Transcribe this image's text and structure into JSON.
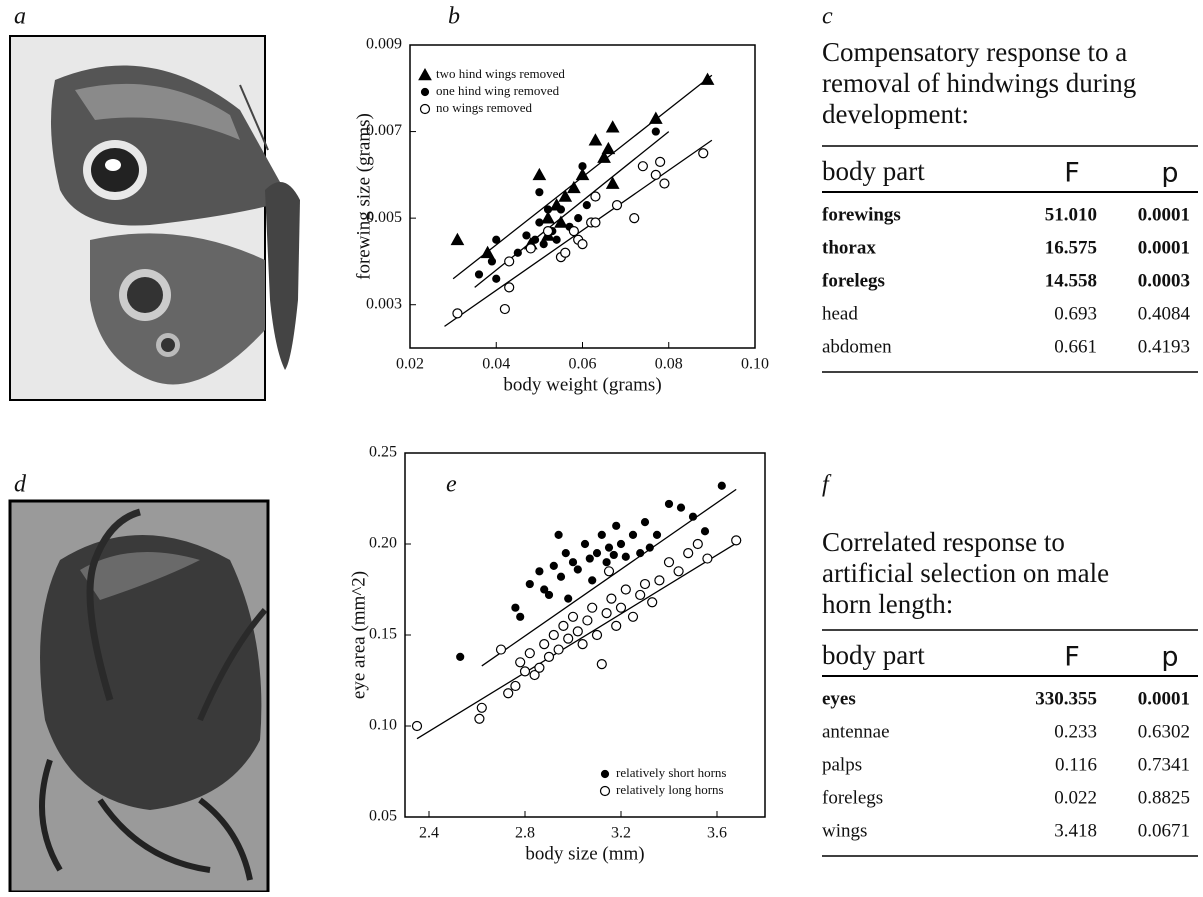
{
  "panel_labels": [
    "a",
    "b",
    "c",
    "d",
    "e",
    "f"
  ],
  "chart_data": [
    {
      "type": "scatter",
      "xlabel": "body weight (grams)",
      "ylabel": "forewing size (grams)",
      "xlim": [
        0.02,
        0.1
      ],
      "xticks": [
        0.02,
        0.04,
        0.06,
        0.08,
        {
          "value": 0.1,
          "label": "0.10"
        }
      ],
      "ylim": [
        0.002,
        0.009
      ],
      "yticks": [
        0.003,
        0.005,
        0.007,
        0.009
      ],
      "legend": "upper left",
      "series": [
        {
          "name": "two hind wings removed",
          "color": "#000000",
          "marker": "triangle",
          "filled": true,
          "x": [
            0.031,
            0.038,
            0.05,
            0.052,
            0.054,
            0.056,
            0.058,
            0.06,
            0.063,
            0.066,
            0.067,
            0.067,
            0.065,
            0.077,
            0.089,
            0.048,
            0.052,
            0.055
          ],
          "y": [
            0.0045,
            0.0042,
            0.006,
            0.005,
            0.0053,
            0.0055,
            0.0057,
            0.006,
            0.0068,
            0.0066,
            0.0071,
            0.0058,
            0.0064,
            0.0073,
            0.0082,
            0.0044,
            0.0046,
            0.0049
          ],
          "fit_x": [
            0.03,
            0.09
          ],
          "fit_y": [
            0.0036,
            0.0083
          ]
        },
        {
          "name": "one hind wing removed",
          "color": "#000000",
          "marker": "circle",
          "filled": true,
          "x": [
            0.036,
            0.039,
            0.04,
            0.04,
            0.045,
            0.047,
            0.048,
            0.049,
            0.05,
            0.051,
            0.052,
            0.053,
            0.054,
            0.055,
            0.057,
            0.059,
            0.06,
            0.061,
            0.05,
            0.077
          ],
          "y": [
            0.0037,
            0.004,
            0.0045,
            0.0036,
            0.0042,
            0.0046,
            0.0043,
            0.0045,
            0.0049,
            0.0044,
            0.0052,
            0.0047,
            0.0045,
            0.0052,
            0.0048,
            0.005,
            0.0062,
            0.0053,
            0.0056,
            0.007
          ],
          "fit_x": [
            0.035,
            0.08
          ],
          "fit_y": [
            0.0034,
            0.007
          ]
        },
        {
          "name": "no wings removed",
          "color": "#000000",
          "marker": "circle",
          "filled": false,
          "x": [
            0.031,
            0.042,
            0.043,
            0.043,
            0.048,
            0.052,
            0.055,
            0.056,
            0.058,
            0.059,
            0.06,
            0.062,
            0.063,
            0.068,
            0.072,
            0.074,
            0.077,
            0.078,
            0.079,
            0.088,
            0.063
          ],
          "y": [
            0.0028,
            0.0029,
            0.0034,
            0.004,
            0.0043,
            0.0047,
            0.0041,
            0.0042,
            0.0047,
            0.0045,
            0.0044,
            0.0049,
            0.0055,
            0.0053,
            0.005,
            0.0062,
            0.006,
            0.0063,
            0.0058,
            0.0065,
            0.0049
          ],
          "fit_x": [
            0.028,
            0.09
          ],
          "fit_y": [
            0.0025,
            0.0068
          ]
        }
      ]
    },
    {
      "type": "scatter",
      "xlabel": "body size (mm)",
      "ylabel": "eye area (mm^2)",
      "xlim": [
        2.3,
        3.8
      ],
      "xticks": [
        2.4,
        2.8,
        3.2,
        3.6
      ],
      "ylim": [
        0.05,
        0.25
      ],
      "yticks": [
        0.05,
        {
          "value": 0.1,
          "label": "0.10"
        },
        0.15,
        {
          "value": 0.2,
          "label": "0.20"
        },
        0.25
      ],
      "legend": "lower right",
      "series": [
        {
          "name": "relatively short horns",
          "color": "#000000",
          "marker": "circle",
          "filled": true,
          "x": [
            2.53,
            2.76,
            2.78,
            2.82,
            2.86,
            2.88,
            2.9,
            2.92,
            2.95,
            2.97,
            2.98,
            3.0,
            3.02,
            3.05,
            3.07,
            3.08,
            3.1,
            3.12,
            3.14,
            3.15,
            3.17,
            3.18,
            3.2,
            3.22,
            3.25,
            3.28,
            3.3,
            3.35,
            3.4,
            3.45,
            3.5,
            3.55,
            3.62,
            2.94,
            3.32
          ],
          "y": [
            0.138,
            0.165,
            0.16,
            0.178,
            0.185,
            0.175,
            0.172,
            0.188,
            0.182,
            0.195,
            0.17,
            0.19,
            0.186,
            0.2,
            0.192,
            0.18,
            0.195,
            0.205,
            0.19,
            0.198,
            0.194,
            0.21,
            0.2,
            0.193,
            0.205,
            0.195,
            0.212,
            0.205,
            0.222,
            0.22,
            0.215,
            0.207,
            0.232,
            0.205,
            0.198
          ],
          "fit_x": [
            2.62,
            3.68
          ],
          "fit_y": [
            0.133,
            0.23
          ]
        },
        {
          "name": "relatively long horns",
          "color": "#000000",
          "marker": "circle",
          "filled": false,
          "x": [
            2.35,
            2.61,
            2.62,
            2.7,
            2.73,
            2.76,
            2.78,
            2.8,
            2.82,
            2.84,
            2.86,
            2.88,
            2.9,
            2.92,
            2.94,
            2.96,
            2.98,
            3.0,
            3.02,
            3.04,
            3.06,
            3.08,
            3.1,
            3.12,
            3.14,
            3.16,
            3.18,
            3.2,
            3.22,
            3.25,
            3.28,
            3.3,
            3.33,
            3.36,
            3.4,
            3.44,
            3.48,
            3.52,
            3.56,
            3.68,
            3.15
          ],
          "y": [
            0.1,
            0.104,
            0.11,
            0.142,
            0.118,
            0.122,
            0.135,
            0.13,
            0.14,
            0.128,
            0.132,
            0.145,
            0.138,
            0.15,
            0.142,
            0.155,
            0.148,
            0.16,
            0.152,
            0.145,
            0.158,
            0.165,
            0.15,
            0.134,
            0.162,
            0.17,
            0.155,
            0.165,
            0.175,
            0.16,
            0.172,
            0.178,
            0.168,
            0.18,
            0.19,
            0.185,
            0.195,
            0.2,
            0.192,
            0.202,
            0.185
          ],
          "fit_x": [
            2.35,
            3.7
          ],
          "fit_y": [
            0.093,
            0.202
          ]
        }
      ]
    }
  ],
  "tables": [
    {
      "title_lines": [
        "Compensatory response to a",
        "removal of hindwings during",
        "development:"
      ],
      "header": [
        "body part",
        "F",
        "p"
      ],
      "rows": [
        [
          "forewings",
          "51.010",
          "0.0001"
        ],
        [
          "thorax",
          "16.575",
          "0.0001"
        ],
        [
          "forelegs",
          "14.558",
          "0.0003"
        ],
        [
          "head",
          "0.693",
          "0.4084"
        ],
        [
          "abdomen",
          "0.661",
          "0.4193"
        ]
      ],
      "bold_rows": [
        0,
        1,
        2
      ]
    },
    {
      "title_lines": [
        "Correlated response to",
        "artificial selection on male",
        "horn length:"
      ],
      "header": [
        "body part",
        "F",
        "p"
      ],
      "rows": [
        [
          "eyes",
          "330.355",
          "0.0001"
        ],
        [
          "antennae",
          "0.233",
          "0.6302"
        ],
        [
          "palps",
          "0.116",
          "0.7341"
        ],
        [
          "forelegs",
          "0.022",
          "0.8825"
        ],
        [
          "wings",
          "3.418",
          "0.0671"
        ]
      ],
      "bold_rows": [
        0
      ]
    }
  ]
}
